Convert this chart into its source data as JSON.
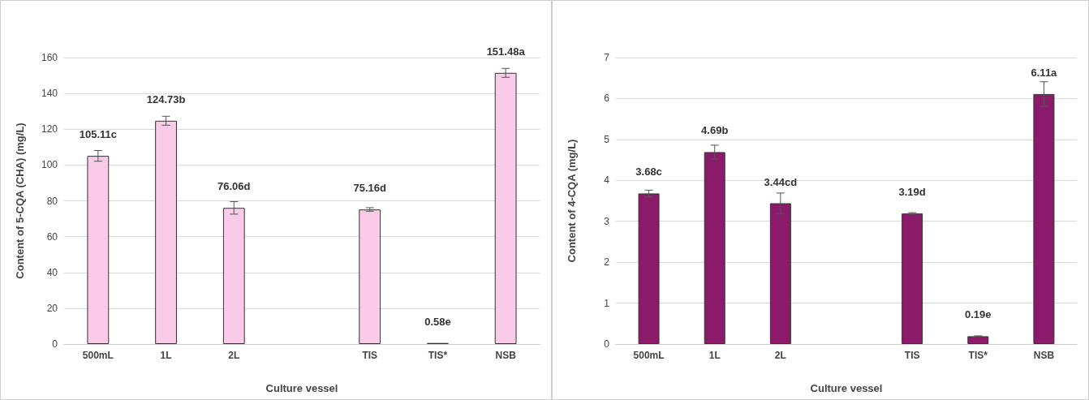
{
  "chart_data": [
    {
      "type": "bar",
      "xlabel": "Culture vessel",
      "ylabel": "Content of 5-CQA (CHA) (mg/L)",
      "categories": [
        "500mL",
        "1L",
        "2L",
        null,
        "TIS",
        "TIS*",
        "NSB"
      ],
      "series": [
        {
          "color": "#f9cbe9",
          "values": [
            105.11,
            124.73,
            76.06,
            null,
            75.16,
            0.58,
            151.48
          ],
          "errors": [
            3,
            2.5,
            3.5,
            null,
            1,
            null,
            2.5
          ],
          "value_labels": [
            "105.11c",
            "124.73b",
            "76.06d",
            null,
            "75.16d",
            "0.58e",
            "151.48a"
          ]
        }
      ],
      "ylim": [
        0,
        160
      ],
      "yticks": [
        0,
        20,
        40,
        60,
        80,
        100,
        120,
        140,
        160
      ],
      "grid": "y"
    },
    {
      "type": "bar",
      "xlabel": "Culture vessel",
      "ylabel": "Content of 4-CQA (mg/L)",
      "categories": [
        "500mL",
        "1L",
        "2L",
        null,
        "TIS",
        "TIS*",
        "NSB"
      ],
      "series": [
        {
          "color": "#8b1a6b",
          "values": [
            3.68,
            4.69,
            3.44,
            null,
            3.19,
            0.19,
            6.11
          ],
          "errors": [
            0.08,
            0.17,
            0.25,
            null,
            0.02,
            0.01,
            0.3
          ],
          "value_labels": [
            "3.68c",
            "4.69b",
            "3.44cd",
            null,
            "3.19d",
            "0.19e",
            "6.11a"
          ]
        }
      ],
      "ylim": [
        0,
        7
      ],
      "yticks": [
        0,
        1,
        2,
        3,
        4,
        5,
        6,
        7
      ],
      "grid": "y"
    }
  ]
}
